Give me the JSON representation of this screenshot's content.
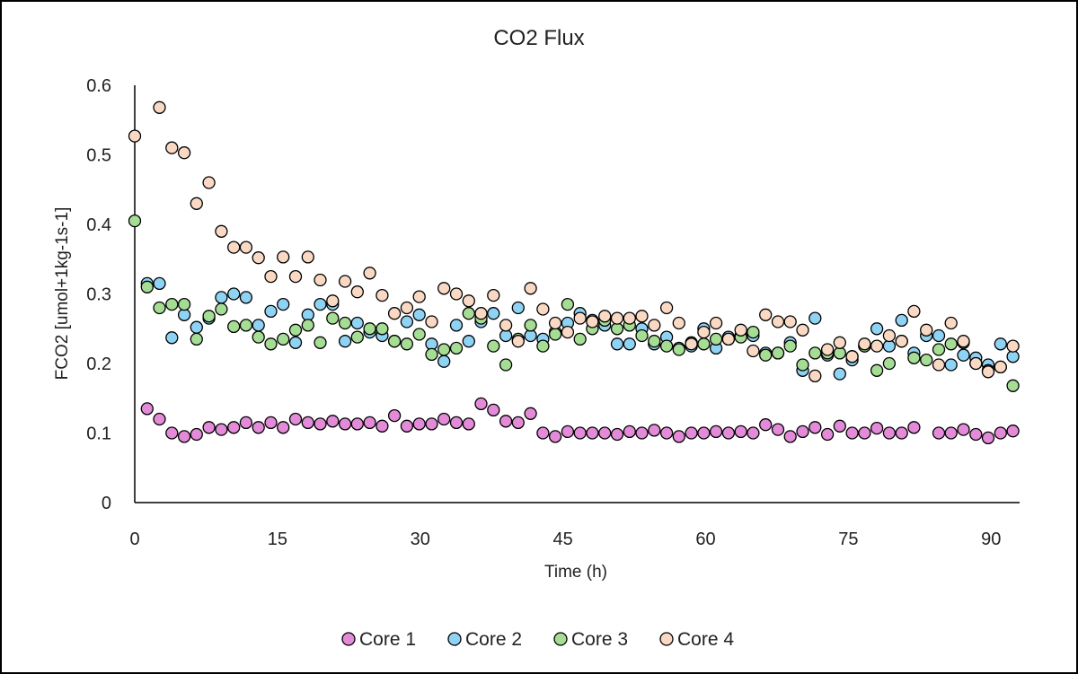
{
  "chart_data": {
    "type": "scatter",
    "title": "CO2 Flux",
    "xlabel": "Time (h)",
    "ylabel": "FCO2 [umol+1kg-1s-1]",
    "xlim": [
      0,
      93
    ],
    "ylim": [
      0,
      0.6
    ],
    "xticks": [
      "0",
      "15",
      "30",
      "45",
      "60",
      "75",
      "90"
    ],
    "yticks": [
      "0",
      "0.1",
      "0.2",
      "0.3",
      "0.4",
      "0.5",
      "0.6"
    ],
    "grid": false,
    "legend_position": "bottom",
    "colors": {
      "Core 1": "#e38ad9",
      "Core 2": "#8fd3f4",
      "Core 3": "#a6dd94",
      "Core 4": "#f9d9c4"
    },
    "series": [
      {
        "name": "Core 1",
        "points": [
          [
            1.3,
            0.135
          ],
          [
            2.6,
            0.12
          ],
          [
            3.9,
            0.1
          ],
          [
            5.2,
            0.095
          ],
          [
            6.5,
            0.098
          ],
          [
            7.8,
            0.108
          ],
          [
            9.1,
            0.105
          ],
          [
            10.4,
            0.108
          ],
          [
            11.7,
            0.115
          ],
          [
            13.0,
            0.108
          ],
          [
            14.3,
            0.115
          ],
          [
            15.6,
            0.108
          ],
          [
            16.9,
            0.12
          ],
          [
            18.2,
            0.115
          ],
          [
            19.5,
            0.113
          ],
          [
            20.8,
            0.117
          ],
          [
            22.1,
            0.113
          ],
          [
            23.4,
            0.113
          ],
          [
            24.7,
            0.115
          ],
          [
            26.0,
            0.11
          ],
          [
            27.3,
            0.125
          ],
          [
            28.6,
            0.11
          ],
          [
            29.9,
            0.113
          ],
          [
            31.2,
            0.113
          ],
          [
            32.5,
            0.12
          ],
          [
            33.8,
            0.115
          ],
          [
            35.1,
            0.113
          ],
          [
            36.4,
            0.142
          ],
          [
            37.7,
            0.133
          ],
          [
            39.0,
            0.117
          ],
          [
            40.3,
            0.115
          ],
          [
            41.6,
            0.128
          ],
          [
            42.9,
            0.1
          ],
          [
            44.2,
            0.095
          ],
          [
            45.5,
            0.102
          ],
          [
            46.8,
            0.1
          ],
          [
            48.1,
            0.1
          ],
          [
            49.4,
            0.1
          ],
          [
            50.7,
            0.098
          ],
          [
            52.0,
            0.102
          ],
          [
            53.3,
            0.1
          ],
          [
            54.6,
            0.104
          ],
          [
            55.9,
            0.1
          ],
          [
            57.2,
            0.095
          ],
          [
            58.5,
            0.1
          ],
          [
            59.8,
            0.1
          ],
          [
            61.1,
            0.102
          ],
          [
            62.4,
            0.1
          ],
          [
            63.7,
            0.102
          ],
          [
            65.0,
            0.1
          ],
          [
            66.3,
            0.112
          ],
          [
            67.6,
            0.105
          ],
          [
            68.9,
            0.095
          ],
          [
            70.2,
            0.102
          ],
          [
            71.5,
            0.108
          ],
          [
            72.8,
            0.098
          ],
          [
            74.1,
            0.11
          ],
          [
            75.4,
            0.1
          ],
          [
            76.7,
            0.1
          ],
          [
            78.0,
            0.107
          ],
          [
            79.3,
            0.1
          ],
          [
            80.6,
            0.1
          ],
          [
            81.9,
            0.108
          ],
          [
            84.5,
            0.1
          ],
          [
            85.8,
            0.1
          ],
          [
            87.1,
            0.105
          ],
          [
            88.4,
            0.098
          ],
          [
            89.7,
            0.093
          ],
          [
            91.0,
            0.1
          ],
          [
            92.3,
            0.103
          ]
        ]
      },
      {
        "name": "Core 2",
        "points": [
          [
            1.3,
            0.315
          ],
          [
            2.6,
            0.315
          ],
          [
            3.9,
            0.237
          ],
          [
            5.2,
            0.27
          ],
          [
            6.5,
            0.252
          ],
          [
            7.8,
            0.265
          ],
          [
            9.1,
            0.295
          ],
          [
            10.4,
            0.3
          ],
          [
            11.7,
            0.295
          ],
          [
            13.0,
            0.255
          ],
          [
            14.3,
            0.275
          ],
          [
            15.6,
            0.285
          ],
          [
            16.9,
            0.23
          ],
          [
            18.2,
            0.27
          ],
          [
            19.5,
            0.285
          ],
          [
            20.8,
            0.285
          ],
          [
            22.1,
            0.232
          ],
          [
            23.4,
            0.258
          ],
          [
            24.7,
            0.245
          ],
          [
            26.0,
            0.24
          ],
          [
            27.3,
            0.232
          ],
          [
            28.6,
            0.26
          ],
          [
            29.9,
            0.27
          ],
          [
            31.2,
            0.228
          ],
          [
            32.5,
            0.203
          ],
          [
            33.8,
            0.255
          ],
          [
            35.1,
            0.232
          ],
          [
            36.4,
            0.26
          ],
          [
            37.7,
            0.272
          ],
          [
            39.0,
            0.24
          ],
          [
            40.3,
            0.28
          ],
          [
            41.6,
            0.24
          ],
          [
            42.9,
            0.235
          ],
          [
            44.2,
            0.245
          ],
          [
            45.5,
            0.258
          ],
          [
            46.8,
            0.272
          ],
          [
            48.1,
            0.262
          ],
          [
            49.4,
            0.255
          ],
          [
            50.7,
            0.228
          ],
          [
            52.0,
            0.228
          ],
          [
            53.3,
            0.25
          ],
          [
            54.6,
            0.228
          ],
          [
            55.9,
            0.238
          ],
          [
            57.2,
            0.222
          ],
          [
            58.5,
            0.225
          ],
          [
            59.8,
            0.25
          ],
          [
            61.1,
            0.222
          ],
          [
            62.4,
            0.238
          ],
          [
            63.7,
            0.24
          ],
          [
            65.0,
            0.24
          ],
          [
            66.3,
            0.215
          ],
          [
            67.6,
            0.215
          ],
          [
            68.9,
            0.23
          ],
          [
            70.2,
            0.19
          ],
          [
            71.5,
            0.265
          ],
          [
            72.8,
            0.212
          ],
          [
            74.1,
            0.185
          ],
          [
            75.4,
            0.205
          ],
          [
            76.7,
            0.225
          ],
          [
            78.0,
            0.25
          ],
          [
            79.3,
            0.225
          ],
          [
            80.6,
            0.262
          ],
          [
            81.9,
            0.215
          ],
          [
            83.2,
            0.24
          ],
          [
            84.5,
            0.24
          ],
          [
            85.8,
            0.198
          ],
          [
            87.1,
            0.212
          ],
          [
            88.4,
            0.208
          ],
          [
            89.7,
            0.198
          ],
          [
            91.0,
            0.228
          ],
          [
            92.3,
            0.21
          ]
        ]
      },
      {
        "name": "Core 3",
        "points": [
          [
            0.0,
            0.405
          ],
          [
            1.3,
            0.31
          ],
          [
            2.6,
            0.28
          ],
          [
            3.9,
            0.285
          ],
          [
            5.2,
            0.285
          ],
          [
            6.5,
            0.235
          ],
          [
            7.8,
            0.268
          ],
          [
            9.1,
            0.278
          ],
          [
            10.4,
            0.253
          ],
          [
            11.7,
            0.255
          ],
          [
            13.0,
            0.238
          ],
          [
            14.3,
            0.228
          ],
          [
            15.6,
            0.235
          ],
          [
            16.9,
            0.248
          ],
          [
            18.2,
            0.255
          ],
          [
            19.5,
            0.23
          ],
          [
            20.8,
            0.265
          ],
          [
            22.1,
            0.258
          ],
          [
            23.4,
            0.238
          ],
          [
            24.7,
            0.25
          ],
          [
            26.0,
            0.25
          ],
          [
            27.3,
            0.232
          ],
          [
            28.6,
            0.228
          ],
          [
            29.9,
            0.242
          ],
          [
            31.2,
            0.213
          ],
          [
            32.5,
            0.22
          ],
          [
            33.8,
            0.222
          ],
          [
            35.1,
            0.272
          ],
          [
            36.4,
            0.265
          ],
          [
            37.7,
            0.225
          ],
          [
            39.0,
            0.198
          ],
          [
            40.3,
            0.235
          ],
          [
            41.6,
            0.255
          ],
          [
            42.9,
            0.225
          ],
          [
            44.2,
            0.242
          ],
          [
            45.5,
            0.285
          ],
          [
            46.8,
            0.235
          ],
          [
            48.1,
            0.25
          ],
          [
            49.4,
            0.262
          ],
          [
            50.7,
            0.25
          ],
          [
            52.0,
            0.255
          ],
          [
            53.3,
            0.24
          ],
          [
            54.6,
            0.232
          ],
          [
            55.9,
            0.225
          ],
          [
            57.2,
            0.22
          ],
          [
            58.5,
            0.23
          ],
          [
            59.8,
            0.228
          ],
          [
            61.1,
            0.235
          ],
          [
            62.4,
            0.235
          ],
          [
            63.7,
            0.238
          ],
          [
            65.0,
            0.245
          ],
          [
            66.3,
            0.212
          ],
          [
            67.6,
            0.215
          ],
          [
            68.9,
            0.225
          ],
          [
            70.2,
            0.198
          ],
          [
            71.5,
            0.215
          ],
          [
            72.8,
            0.215
          ],
          [
            74.1,
            0.215
          ],
          [
            75.4,
            0.21
          ],
          [
            76.7,
            0.225
          ],
          [
            78.0,
            0.19
          ],
          [
            79.3,
            0.2
          ],
          [
            80.6,
            0.232
          ],
          [
            81.9,
            0.208
          ],
          [
            83.2,
            0.205
          ],
          [
            84.5,
            0.22
          ],
          [
            85.8,
            0.228
          ],
          [
            87.1,
            0.23
          ],
          [
            88.4,
            0.2
          ],
          [
            89.7,
            0.19
          ],
          [
            91.0,
            0.195
          ],
          [
            92.3,
            0.168
          ]
        ]
      },
      {
        "name": "Core 4",
        "points": [
          [
            0.0,
            0.527
          ],
          [
            2.6,
            0.568
          ],
          [
            3.9,
            0.51
          ],
          [
            5.2,
            0.503
          ],
          [
            6.5,
            0.43
          ],
          [
            7.8,
            0.46
          ],
          [
            9.1,
            0.39
          ],
          [
            10.4,
            0.367
          ],
          [
            11.7,
            0.367
          ],
          [
            13.0,
            0.352
          ],
          [
            14.3,
            0.325
          ],
          [
            15.6,
            0.353
          ],
          [
            16.9,
            0.325
          ],
          [
            18.2,
            0.353
          ],
          [
            19.5,
            0.32
          ],
          [
            20.8,
            0.29
          ],
          [
            22.1,
            0.318
          ],
          [
            23.4,
            0.303
          ],
          [
            24.7,
            0.33
          ],
          [
            26.0,
            0.298
          ],
          [
            27.3,
            0.272
          ],
          [
            28.6,
            0.28
          ],
          [
            29.9,
            0.296
          ],
          [
            31.2,
            0.26
          ],
          [
            32.5,
            0.308
          ],
          [
            33.8,
            0.3
          ],
          [
            35.1,
            0.29
          ],
          [
            36.4,
            0.272
          ],
          [
            37.7,
            0.298
          ],
          [
            39.0,
            0.255
          ],
          [
            40.3,
            0.232
          ],
          [
            41.6,
            0.308
          ],
          [
            42.9,
            0.278
          ],
          [
            44.2,
            0.258
          ],
          [
            45.5,
            0.245
          ],
          [
            46.8,
            0.265
          ],
          [
            48.1,
            0.26
          ],
          [
            49.4,
            0.268
          ],
          [
            50.7,
            0.265
          ],
          [
            52.0,
            0.265
          ],
          [
            53.3,
            0.268
          ],
          [
            54.6,
            0.255
          ],
          [
            55.9,
            0.28
          ],
          [
            57.2,
            0.258
          ],
          [
            58.5,
            0.228
          ],
          [
            59.8,
            0.245
          ],
          [
            61.1,
            0.258
          ],
          [
            62.4,
            0.235
          ],
          [
            63.7,
            0.248
          ],
          [
            65.0,
            0.218
          ],
          [
            66.3,
            0.27
          ],
          [
            67.6,
            0.26
          ],
          [
            68.9,
            0.26
          ],
          [
            70.2,
            0.248
          ],
          [
            71.5,
            0.182
          ],
          [
            72.8,
            0.22
          ],
          [
            74.1,
            0.23
          ],
          [
            75.4,
            0.21
          ],
          [
            76.7,
            0.228
          ],
          [
            78.0,
            0.225
          ],
          [
            79.3,
            0.24
          ],
          [
            80.6,
            0.232
          ],
          [
            81.9,
            0.275
          ],
          [
            83.2,
            0.248
          ],
          [
            84.5,
            0.198
          ],
          [
            85.8,
            0.258
          ],
          [
            87.1,
            0.232
          ],
          [
            88.4,
            0.2
          ],
          [
            89.7,
            0.188
          ],
          [
            91.0,
            0.195
          ],
          [
            92.3,
            0.225
          ]
        ]
      }
    ]
  }
}
